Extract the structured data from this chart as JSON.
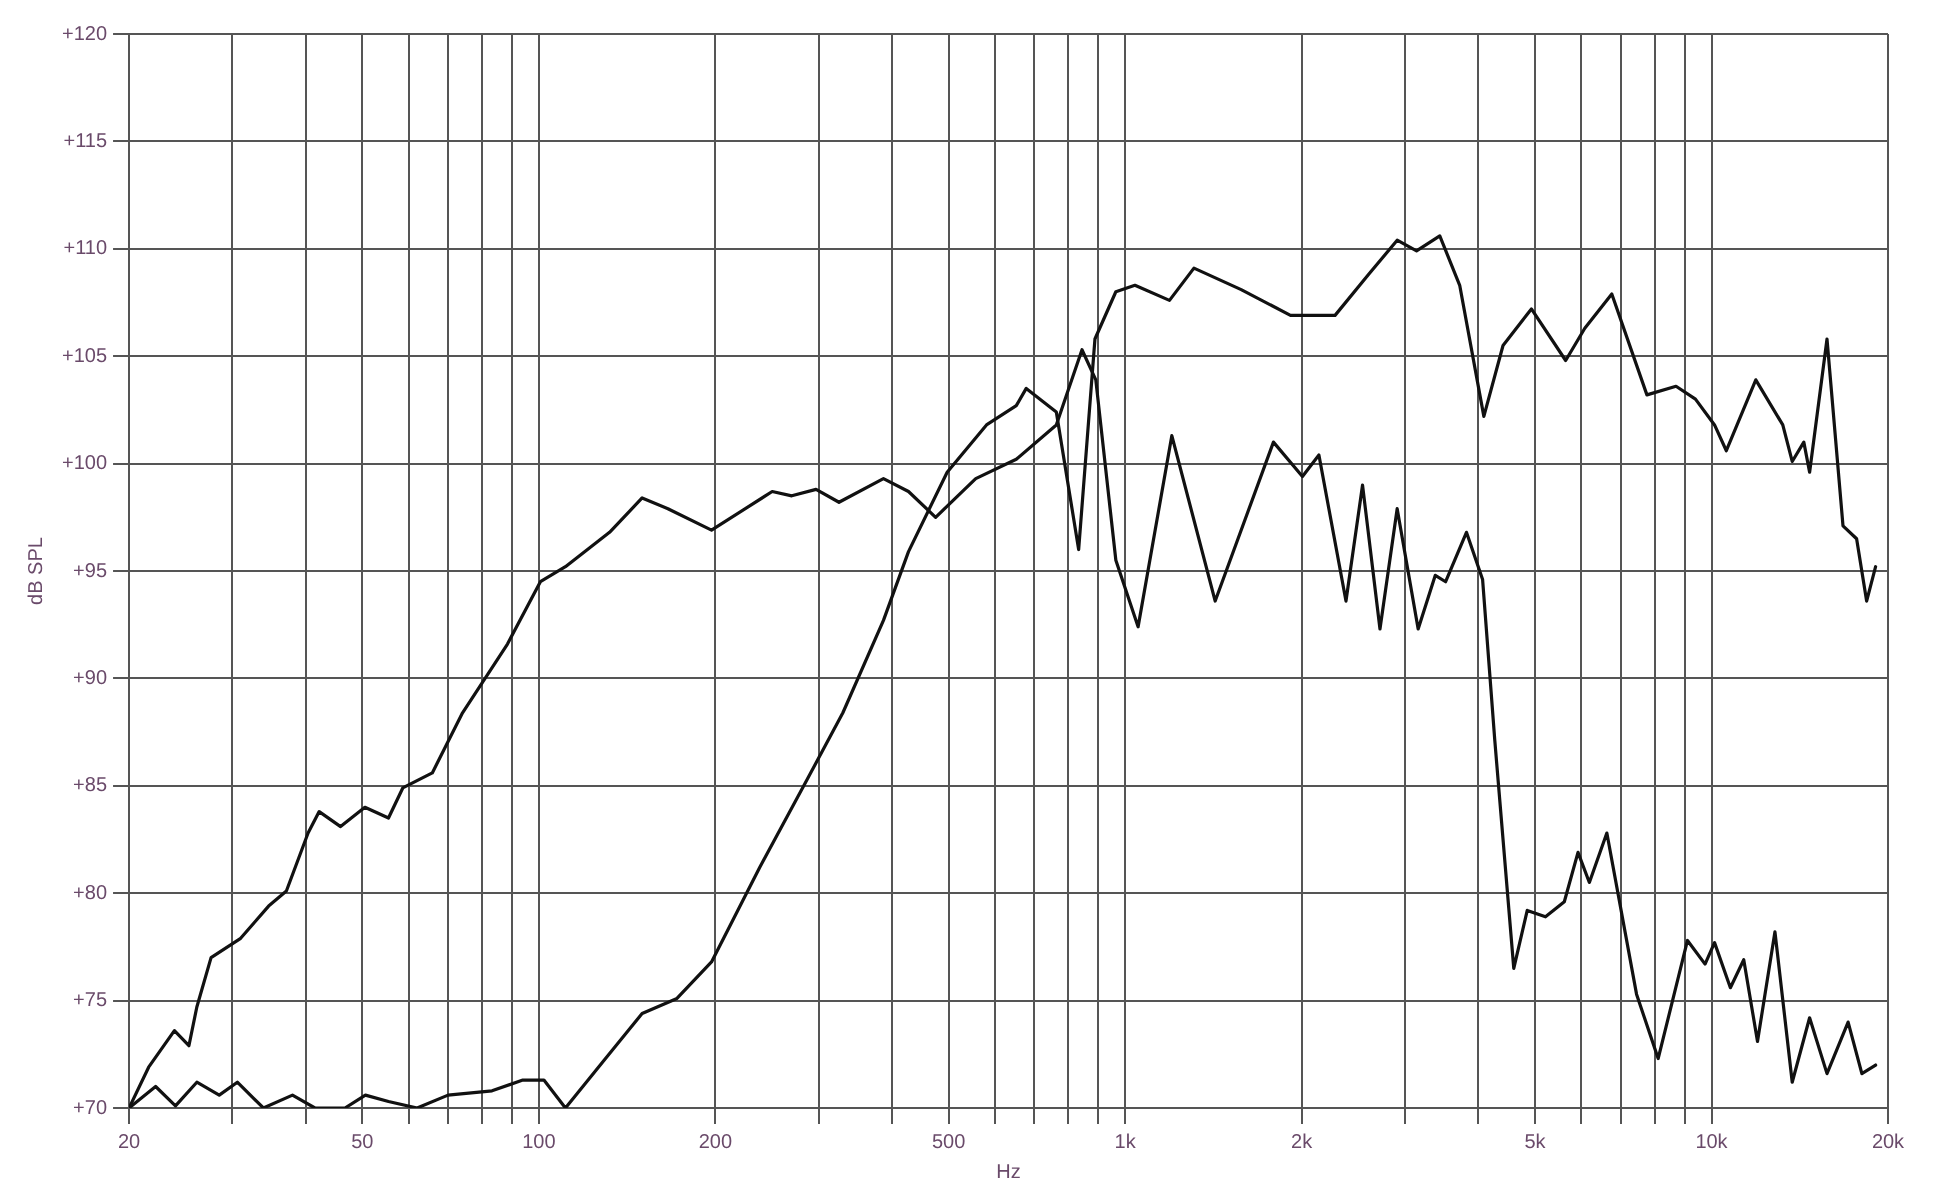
{
  "chart_data": {
    "type": "line",
    "xlabel": "Hz",
    "ylabel": "dB SPL",
    "log": "x",
    "grid": true,
    "legend": false,
    "marker": "none",
    "line_style": "solid",
    "xlim": [
      20,
      20000
    ],
    "ylim": [
      70,
      120
    ],
    "xticks": [
      20,
      {
        "value": 30,
        "label": null
      },
      {
        "value": 40,
        "label": null
      },
      50,
      {
        "value": 60,
        "label": null
      },
      {
        "value": 70,
        "label": null
      },
      {
        "value": 80,
        "label": null
      },
      {
        "value": 90,
        "label": null
      },
      100,
      200,
      {
        "value": 300,
        "label": null
      },
      {
        "value": 400,
        "label": null
      },
      500,
      {
        "value": 600,
        "label": null
      },
      {
        "value": 700,
        "label": null
      },
      {
        "value": 800,
        "label": null
      },
      {
        "value": 900,
        "label": null
      },
      {
        "value": 1000,
        "label": "1k"
      },
      {
        "value": 2000,
        "label": "2k"
      },
      {
        "value": 3000,
        "label": null
      },
      {
        "value": 4000,
        "label": null
      },
      {
        "value": 5000,
        "label": "5k"
      },
      {
        "value": 6000,
        "label": null
      },
      {
        "value": 7000,
        "label": null
      },
      {
        "value": 8000,
        "label": null
      },
      {
        "value": 9000,
        "label": null
      },
      {
        "value": 10000,
        "label": "10k"
      },
      {
        "value": 20000,
        "label": "20k"
      }
    ],
    "yticks": [
      {
        "value": 70,
        "label": "+70"
      },
      {
        "value": 75,
        "label": "+75"
      },
      {
        "value": 80,
        "label": "+80"
      },
      {
        "value": 85,
        "label": "+85"
      },
      {
        "value": 90,
        "label": "+90"
      },
      {
        "value": 95,
        "label": "+95"
      },
      {
        "value": 100,
        "label": "+100"
      },
      {
        "value": 105,
        "label": "+105"
      },
      {
        "value": 110,
        "label": "+110"
      },
      {
        "value": 115,
        "label": "+115"
      },
      {
        "value": 120,
        "label": "+120"
      }
    ],
    "series": [
      {
        "color": "#111111",
        "x": [
          20,
          21.6,
          23.9,
          25.3,
          26.1,
          27.6,
          31,
          34.6,
          37.1,
          40.4,
          42.2,
          45.9,
          50.5,
          55.4,
          58.6,
          65.8,
          74.1,
          88.4,
          100.6,
          111,
          132,
          150,
          166,
          197,
          250,
          270,
          297,
          325,
          387,
          427,
          475,
          556,
          652,
          763,
          844,
          891,
          964,
          1052,
          1201,
          1424,
          1790,
          2006,
          2140,
          2380,
          2540,
          2720,
          2910,
          3160,
          3380,
          3520,
          3820,
          4070,
          4270,
          4600,
          4850,
          5210,
          5610,
          5920,
          6190,
          6630,
          7450,
          8110,
          9100,
          9750,
          10120,
          10770,
          11350,
          11980,
          12830,
          13730,
          14700,
          15740,
          17100,
          18050,
          19050
        ],
        "values": [
          70,
          71.9,
          73.6,
          72.9,
          74.7,
          77,
          77.9,
          79.4,
          80.1,
          82.8,
          83.8,
          83.1,
          84,
          83.5,
          84.9,
          85.6,
          88.4,
          91.6,
          94.5,
          95.2,
          96.8,
          98.4,
          97.9,
          96.9,
          98.7,
          98.5,
          98.8,
          98.2,
          99.3,
          98.7,
          97.5,
          99.3,
          100.2,
          101.8,
          105.3,
          103.9,
          95.5,
          92.4,
          101.3,
          93.6,
          101,
          99.4,
          100.4,
          93.6,
          99,
          92.3,
          97.9,
          92.3,
          94.8,
          94.5,
          96.8,
          94.6,
          87.1,
          76.5,
          79.2,
          78.9,
          79.6,
          81.9,
          80.5,
          82.8,
          75.3,
          72.3,
          77.8,
          76.7,
          77.7,
          75.6,
          76.9,
          73.1,
          78.2,
          71.2,
          74.2,
          71.6,
          74,
          71.6,
          72
        ]
      },
      {
        "color": "#111111",
        "x": [
          20,
          22.2,
          24,
          26.1,
          28.5,
          30.6,
          33.9,
          38,
          41.5,
          46.7,
          50.6,
          55.4,
          62,
          70,
          83.2,
          93.9,
          102,
          111,
          129,
          150,
          172,
          197,
          238,
          283,
          330,
          387,
          427,
          497,
          580,
          652,
          678,
          763,
          833,
          888,
          964,
          1039,
          1190,
          1310,
          1577,
          1914,
          2280,
          2600,
          2910,
          3140,
          3440,
          3720,
          4090,
          4410,
          4930,
          5640,
          6080,
          6760,
          7760,
          8700,
          9390,
          10120,
          10600,
          11900,
          13230,
          13730,
          14370,
          14700,
          15740,
          16760,
          17680,
          18390,
          19050
        ],
        "values": [
          70,
          71,
          70.1,
          71.2,
          70.6,
          71.2,
          70,
          70.6,
          70,
          70,
          70.6,
          70.3,
          70,
          70.6,
          70.8,
          71.3,
          71.3,
          70,
          72.2,
          74.4,
          75.1,
          76.8,
          81.2,
          85,
          88.4,
          92.7,
          95.9,
          99.6,
          101.8,
          102.7,
          103.5,
          102.4,
          96,
          105.8,
          108,
          108.3,
          107.6,
          109.1,
          108.1,
          106.9,
          106.9,
          108.8,
          110.4,
          109.9,
          110.6,
          108.3,
          102.2,
          105.5,
          107.2,
          104.8,
          106.3,
          107.9,
          103.2,
          103.6,
          103,
          101.8,
          100.6,
          103.9,
          101.8,
          100.1,
          101,
          99.6,
          105.8,
          97.1,
          96.5,
          93.6,
          95.2
        ]
      }
    ]
  }
}
